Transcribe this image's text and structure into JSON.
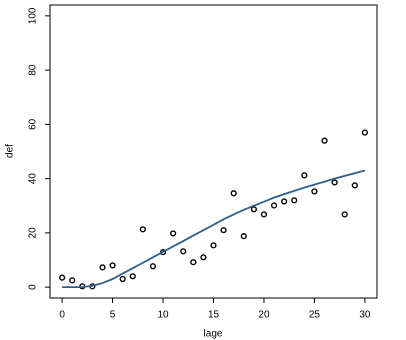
{
  "chart_data": {
    "type": "scatter",
    "x_label": "lage",
    "y_label": "def",
    "x": [
      0,
      1,
      2,
      3,
      4,
      5,
      6,
      7,
      8,
      9,
      10,
      11,
      12,
      13,
      14,
      15,
      16,
      17,
      18,
      19,
      20,
      21,
      22,
      23,
      24,
      25,
      26,
      27,
      28,
      29,
      30
    ],
    "series": [
      {
        "type": "scatter",
        "color": "#000000",
        "values": [
          3.5,
          2.5,
          0.3,
          0.3,
          7.3,
          8,
          3,
          4,
          21.3,
          7.7,
          12.9,
          19.8,
          13.2,
          9.2,
          11,
          15.4,
          21,
          34.6,
          18.8,
          28.7,
          26.8,
          30.1,
          31.6,
          32,
          41.2,
          35.3,
          54,
          38.6,
          26.8,
          37.5,
          57
        ]
      },
      {
        "type": "line",
        "color": "#2e5f8a",
        "values": [
          0,
          0,
          0,
          0.5,
          1.5,
          3,
          5,
          7,
          9,
          11,
          13,
          15,
          17,
          19,
          21,
          23,
          25,
          26.8,
          28.5,
          30,
          31.5,
          33,
          34.3,
          35.5,
          36.7,
          37.8,
          38.9,
          40,
          41,
          42,
          43
        ]
      }
    ],
    "xlim": [
      -1.2,
      31.2
    ],
    "ylim": [
      -4,
      104
    ],
    "xticks": [
      0,
      5,
      10,
      15,
      20,
      25,
      30
    ],
    "yticks": [
      0,
      20,
      40,
      60,
      80,
      100
    ]
  }
}
